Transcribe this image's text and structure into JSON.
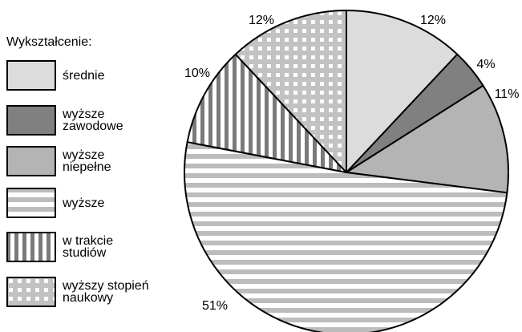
{
  "chart_data": {
    "type": "pie",
    "legend_title": "Wykształcenie:",
    "legend_position": "left",
    "slices": [
      {
        "label": "średnie",
        "value": 12,
        "value_label": "12%",
        "pattern": "solid-light"
      },
      {
        "label": "wyższe\nzawodowe",
        "value": 4,
        "value_label": "4%",
        "pattern": "solid-dark"
      },
      {
        "label": "wyższe\nniepełne",
        "value": 11,
        "value_label": "11%",
        "pattern": "solid-medium"
      },
      {
        "label": "wyższe",
        "value": 51,
        "value_label": "51%",
        "pattern": "horizontal-stripes"
      },
      {
        "label": "w trakcie\nstudiów",
        "value": 10,
        "value_label": "10%",
        "pattern": "vertical-stripes"
      },
      {
        "label": "wyższy stopień\nnaukowy",
        "value": 12,
        "value_label": "12%",
        "pattern": "grid"
      }
    ],
    "colors": {
      "solid-light": "#dcdcdc",
      "solid-dark": "#808080",
      "solid-medium": "#b4b4b4",
      "stripe": "#bcbcbc",
      "stripe-dark": "#7a7a7a",
      "grid-bg": "#c2c2c2",
      "outline": "#000000"
    }
  }
}
